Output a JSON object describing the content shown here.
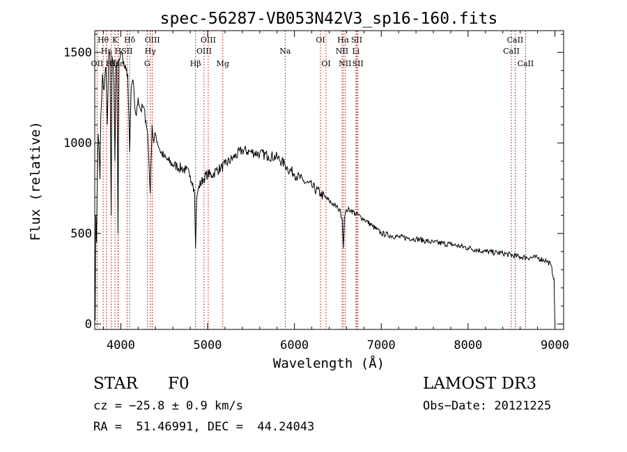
{
  "chart_data": {
    "type": "line",
    "title": "spec-56287-VB053N42V3_sp16-160.fits",
    "xlabel": "Wavelength (Å)",
    "ylabel": "Flux (relative)",
    "xlim": [
      3700,
      9100
    ],
    "ylim": [
      -30,
      1620
    ],
    "x_ticks": [
      4000,
      5000,
      6000,
      7000,
      8000,
      9000
    ],
    "x_tick_labels": [
      "4000",
      "5000",
      "6000",
      "7000",
      "8000",
      "9000"
    ],
    "y_ticks": [
      0,
      500,
      1000,
      1500
    ],
    "y_tick_labels": [
      "0",
      "500",
      "1000",
      "1500"
    ],
    "series": [
      {
        "name": "flux",
        "x": [
          3705,
          3712,
          3720,
          3730,
          3740,
          3750,
          3760,
          3770,
          3780,
          3790,
          3800,
          3815,
          3830,
          3845,
          3860,
          3875,
          3889,
          3900,
          3920,
          3933,
          3945,
          3955,
          3968,
          3980,
          4000,
          4020,
          4040,
          4060,
          4080,
          4102,
          4120,
          4140,
          4160,
          4180,
          4200,
          4230,
          4260,
          4290,
          4310,
          4340,
          4360,
          4380,
          4400,
          4450,
          4500,
          4550,
          4600,
          4650,
          4700,
          4750,
          4800,
          4830,
          4850,
          4861,
          4875,
          4900,
          4950,
          5000,
          5050,
          5100,
          5150,
          5200,
          5300,
          5400,
          5500,
          5600,
          5700,
          5800,
          5893,
          5920,
          6000,
          6100,
          6200,
          6300,
          6350,
          6400,
          6450,
          6500,
          6530,
          6550,
          6563,
          6575,
          6600,
          6650,
          6700,
          6800,
          6900,
          7000,
          7200,
          7400,
          7600,
          7800,
          8000,
          8200,
          8400,
          8600,
          8800,
          8900,
          8950,
          8990,
          8998,
          9002
        ],
        "values": [
          20,
          600,
          450,
          820,
          1050,
          980,
          800,
          1150,
          1250,
          1380,
          1300,
          1350,
          1420,
          1100,
          1480,
          1500,
          600,
          1480,
          1350,
          900,
          1420,
          1450,
          500,
          1460,
          1500,
          1480,
          1420,
          1400,
          1380,
          950,
          1300,
          1350,
          1200,
          1150,
          1250,
          1180,
          1200,
          1120,
          1050,
          720,
          1100,
          1000,
          1050,
          960,
          920,
          900,
          880,
          870,
          860,
          850,
          820,
          780,
          720,
          420,
          700,
          760,
          800,
          830,
          820,
          850,
          860,
          880,
          920,
          960,
          950,
          940,
          930,
          920,
          880,
          860,
          830,
          790,
          760,
          720,
          700,
          680,
          660,
          640,
          620,
          580,
          420,
          580,
          630,
          630,
          610,
          580,
          540,
          500,
          480,
          470,
          450,
          440,
          420,
          400,
          390,
          370,
          365,
          350,
          330,
          250,
          40,
          0
        ]
      }
    ],
    "lines": [
      {
        "label": "Hθ",
        "wavelength": 3797,
        "row": 1
      },
      {
        "label": "OII",
        "wavelength": 3727,
        "row": 3
      },
      {
        "label": "Hη",
        "wavelength": 3835,
        "row": 2
      },
      {
        "label": "Hζ",
        "wavelength": 3889,
        "row": 3
      },
      {
        "label": "K",
        "wavelength": 3933,
        "row": 1
      },
      {
        "label": "H",
        "wavelength": 3968,
        "row": 2
      },
      {
        "label": "Hε",
        "wavelength": 3970,
        "row": 3
      },
      {
        "label": "Hδ",
        "wavelength": 4102,
        "row": 1
      },
      {
        "label": "SII",
        "wavelength": 4072,
        "row": 2
      },
      {
        "label": "OIII",
        "wavelength": 4363,
        "row": 1
      },
      {
        "label": "Hγ",
        "wavelength": 4340,
        "row": 2
      },
      {
        "label": "G",
        "wavelength": 4304,
        "row": 3
      },
      {
        "label": "Hβ",
        "wavelength": 4861,
        "row": 3
      },
      {
        "label": "OIII",
        "wavelength": 5007,
        "row": 1
      },
      {
        "label": "OIII",
        "wavelength": 4959,
        "row": 2
      },
      {
        "label": "Mg",
        "wavelength": 5175,
        "row": 3
      },
      {
        "label": "Na",
        "wavelength": 5893,
        "row": 2
      },
      {
        "label": "OI",
        "wavelength": 6300,
        "row": 1
      },
      {
        "label": "OI",
        "wavelength": 6364,
        "row": 3
      },
      {
        "label": "Hα",
        "wavelength": 6563,
        "row": 1
      },
      {
        "label": "NII",
        "wavelength": 6548,
        "row": 2
      },
      {
        "label": "NII",
        "wavelength": 6583,
        "row": 3
      },
      {
        "label": "SII",
        "wavelength": 6717,
        "row": 1
      },
      {
        "label": "Li",
        "wavelength": 6708,
        "row": 2
      },
      {
        "label": "SII",
        "wavelength": 6731,
        "row": 3
      },
      {
        "label": "CaII",
        "wavelength": 8542,
        "row": 1
      },
      {
        "label": "CaII",
        "wavelength": 8498,
        "row": 2
      },
      {
        "label": "CaII",
        "wavelength": 8662,
        "row": 3
      }
    ],
    "line_color": "#c00000"
  },
  "info": {
    "class": "STAR",
    "subclass": "F0",
    "survey": "LAMOST DR3",
    "cz": "cz = −25.8 ± 0.9 km/s",
    "obs_date": "Obs−Date: 20121225",
    "radec": "RA =  51.46991, DEC =  44.24043"
  }
}
